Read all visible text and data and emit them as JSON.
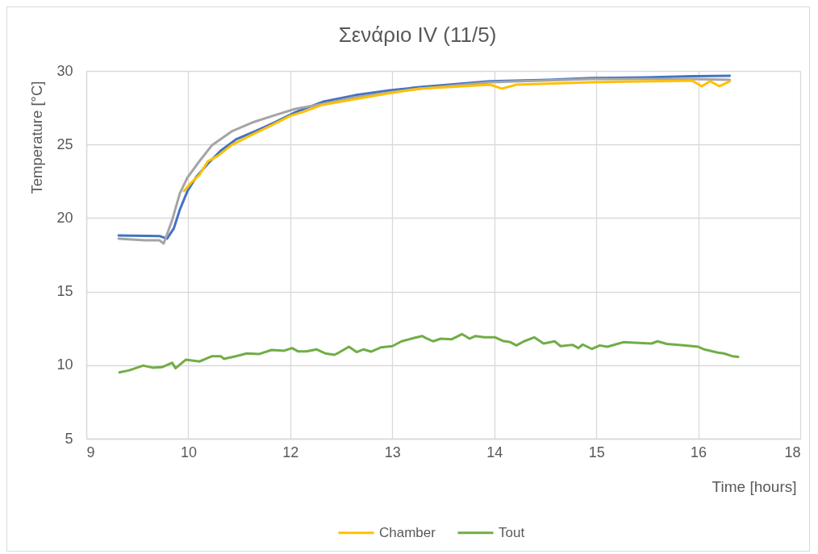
{
  "chart_data": {
    "type": "line",
    "title": "Σενάριο IV (11/5)",
    "xlabel": "Time [hours]",
    "ylabel": "Temperature [°C]",
    "xlim": [
      9.2,
      17.6
    ],
    "xticks": [
      {
        "value": 9.2,
        "label": "9"
      },
      {
        "value": 10.4,
        "label": "10"
      },
      {
        "value": 11.6,
        "label": "12"
      },
      {
        "value": 12.8,
        "label": "13"
      },
      14,
      {
        "value": 15.2,
        "label": "15"
      },
      {
        "value": 16.4,
        "label": "16"
      },
      {
        "value": 17.6,
        "label": "18"
      }
    ],
    "ylim": [
      5,
      30
    ],
    "yticks": [
      5,
      10,
      15,
      20,
      25,
      30
    ],
    "grid": true,
    "legend": "bottom",
    "series": [
      {
        "color": "#4472c4",
        "x": [
          9.58,
          10.06,
          10.15,
          10.23,
          10.3,
          10.39,
          10.49,
          10.63,
          10.78,
          10.96,
          11.2,
          11.41,
          11.66,
          11.98,
          12.36,
          12.77,
          13.12,
          13.95,
          14.64,
          15.14,
          15.78,
          16.33,
          16.77
        ],
        "values": [
          18.82,
          18.78,
          18.6,
          19.3,
          20.57,
          21.83,
          22.76,
          23.7,
          24.57,
          25.34,
          25.94,
          26.49,
          27.2,
          27.9,
          28.35,
          28.68,
          28.9,
          29.3,
          29.4,
          29.52,
          29.56,
          29.65,
          29.67
        ]
      },
      {
        "color": "#a5a5a5",
        "x": [
          9.58,
          9.89,
          10.06,
          10.11,
          10.21,
          10.3,
          10.39,
          10.53,
          10.68,
          10.91,
          11.15,
          11.41,
          11.66,
          11.98,
          12.36,
          12.77,
          13.12,
          13.95,
          15.14,
          16.33,
          16.77
        ],
        "values": [
          18.6,
          18.49,
          18.49,
          18.27,
          19.86,
          21.67,
          22.76,
          23.86,
          24.96,
          25.89,
          26.49,
          26.98,
          27.42,
          27.75,
          28.2,
          28.55,
          28.8,
          29.23,
          29.45,
          29.45,
          29.4
        ]
      },
      {
        "name": "Chamber",
        "color": "#ffc000",
        "x": [
          10.35,
          10.43,
          10.53,
          10.63,
          10.75,
          10.91,
          11.09,
          11.35,
          11.6,
          11.77,
          11.98,
          12.74,
          13.12,
          13.95,
          14.09,
          14.26,
          15.14,
          16.33,
          16.44,
          16.54,
          16.65,
          16.77
        ],
        "values": [
          21.83,
          22.38,
          22.93,
          23.86,
          24.24,
          24.96,
          25.5,
          26.22,
          26.95,
          27.25,
          27.7,
          28.46,
          28.79,
          29.07,
          28.8,
          29.07,
          29.23,
          29.34,
          28.96,
          29.3,
          28.96,
          29.29
        ]
      },
      {
        "name": "Tout",
        "color": "#70ad47",
        "x": [
          9.59,
          9.7,
          9.87,
          9.98,
          10.09,
          10.21,
          10.25,
          10.37,
          10.53,
          10.68,
          10.78,
          10.82,
          10.96,
          11.09,
          11.23,
          11.38,
          11.53,
          11.62,
          11.69,
          11.79,
          11.91,
          12.01,
          12.12,
          12.17,
          12.29,
          12.38,
          12.46,
          12.55,
          12.67,
          12.8,
          12.91,
          13.05,
          13.15,
          13.21,
          13.28,
          13.37,
          13.5,
          13.62,
          13.71,
          13.78,
          13.88,
          14.01,
          14.1,
          14.19,
          14.26,
          14.35,
          14.47,
          14.58,
          14.71,
          14.78,
          14.92,
          14.99,
          15.04,
          15.15,
          15.24,
          15.33,
          15.52,
          15.65,
          15.85,
          15.92,
          16.03,
          16.23,
          16.4,
          16.47,
          16.63,
          16.7,
          16.8,
          16.87
        ],
        "values": [
          9.51,
          9.64,
          9.97,
          9.83,
          9.86,
          10.16,
          9.79,
          10.37,
          10.25,
          10.61,
          10.61,
          10.43,
          10.61,
          10.8,
          10.75,
          11.03,
          10.98,
          11.16,
          10.94,
          10.93,
          11.07,
          10.8,
          10.7,
          10.85,
          11.25,
          10.89,
          11.07,
          10.92,
          11.21,
          11.29,
          11.62,
          11.84,
          11.98,
          11.8,
          11.62,
          11.8,
          11.76,
          12.11,
          11.8,
          11.98,
          11.89,
          11.89,
          11.65,
          11.56,
          11.34,
          11.62,
          11.89,
          11.47,
          11.62,
          11.29,
          11.38,
          11.16,
          11.4,
          11.1,
          11.34,
          11.25,
          11.56,
          11.52,
          11.47,
          11.62,
          11.44,
          11.34,
          11.25,
          11.07,
          10.85,
          10.8,
          10.61,
          10.56
        ]
      }
    ]
  }
}
